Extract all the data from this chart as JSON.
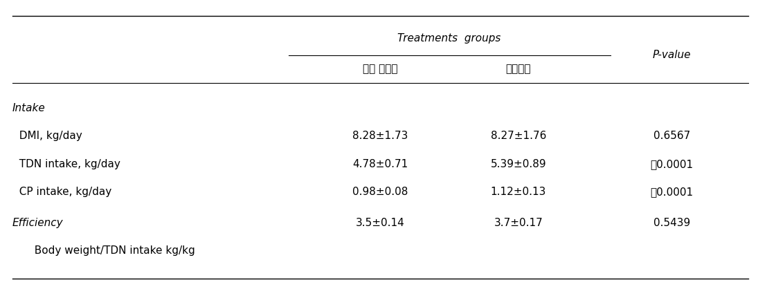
{
  "title": "Treatments  groups",
  "col_headers": [
    "표준 에너지",
    "고에너지",
    "P-value"
  ],
  "sections": [
    {
      "section_label": "Intake",
      "rows": [
        {
          "label": "  DMI, kg/day",
          "col1": "8.28±1.73",
          "col2": "8.27±1.76",
          "col3": "0.6567"
        },
        {
          "label": "  TDN intake, kg/day",
          "col1": "4.78±0.71",
          "col2": "5.39±0.89",
          "col3": "〨0.0001"
        },
        {
          "label": "  CP intake, kg/day",
          "col1": "0.98±0.08",
          "col2": "1.12±0.13",
          "col3": "〨0.0001"
        }
      ]
    },
    {
      "section_label": "Efficiency",
      "rows": [
        {
          "label": "  Body weight/TDN intake kg/kg",
          "col1": "3.5±0.14",
          "col2": "3.7±0.17",
          "col3": "0.5439"
        }
      ]
    }
  ],
  "bg_color": "#ffffff",
  "text_color": "#000000",
  "fontsize": 11,
  "title_fontsize": 11
}
